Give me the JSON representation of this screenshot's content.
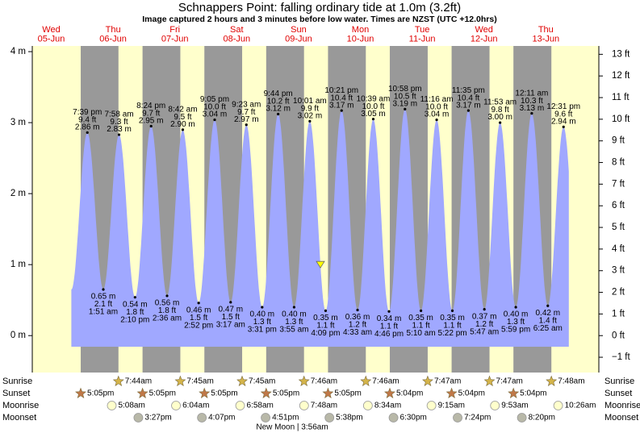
{
  "chart_data": {
    "type": "tide",
    "title": "Schnappers Point: falling  ordinary tide at 1.0m (3.2ft)",
    "subtitle": "Image captured 2 hours and 3 minutes before low water. Times are NZST (UTC +12.0hrs)",
    "current_height_m": 1.0,
    "ylim": [
      -0.52,
      4.08
    ],
    "yticks": [
      {
        "value": 0,
        "label": "0 m"
      },
      {
        "value": 1,
        "label": "1 m"
      },
      {
        "value": 2,
        "label": "2 m"
      },
      {
        "value": 3,
        "label": "3 m"
      },
      {
        "value": 4,
        "label": "4 m"
      }
    ],
    "y2lim": [
      -1.706,
      13.386
    ],
    "y2ticks": [
      {
        "value": -1,
        "label": "−1 ft"
      },
      {
        "value": 0,
        "label": "0 ft"
      },
      {
        "value": 1,
        "label": "1 ft"
      },
      {
        "value": 2,
        "label": "2 ft"
      },
      {
        "value": 3,
        "label": "3 ft"
      },
      {
        "value": 4,
        "label": "4 ft"
      },
      {
        "value": 5,
        "label": "5 ft"
      },
      {
        "value": 6,
        "label": "6 ft"
      },
      {
        "value": 7,
        "label": "7 ft"
      },
      {
        "value": 8,
        "label": "8 ft"
      },
      {
        "value": 9,
        "label": "9 ft"
      },
      {
        "value": 10,
        "label": "10 ft"
      },
      {
        "value": 11,
        "label": "11 ft"
      },
      {
        "value": 12,
        "label": "12 ft"
      },
      {
        "value": 13,
        "label": "13 ft"
      }
    ],
    "row_labels": {
      "sunrise": "Sunrise",
      "sunset": "Sunset",
      "moonrise": "Moonrise",
      "moonset": "Moonset"
    },
    "moon_phase": "New Moon | 3:56am",
    "days": [
      {
        "name": "Wed",
        "date": "05-Jun",
        "sunset": "5:05pm",
        "tides": [
          {
            "time": "7:39 pm",
            "m": 2.86,
            "m_label": "2.86 m",
            "ft": "9.4 ft"
          }
        ]
      },
      {
        "name": "Thu",
        "date": "06-Jun",
        "sunrise": "7:44am",
        "sunset": "5:05pm",
        "moonrise": "5:08am",
        "moonset": "3:27pm",
        "tides": [
          {
            "time": "1:51 am",
            "m": 0.65,
            "m_label": "0.65 m",
            "ft": "2.1 ft"
          },
          {
            "time": "7:58 am",
            "m": 2.83,
            "m_label": "2.83 m",
            "ft": "9.3 ft"
          },
          {
            "time": "2:10 pm",
            "m": 0.54,
            "m_label": "0.54 m",
            "ft": "1.8 ft"
          },
          {
            "time": "8:24 pm",
            "m": 2.95,
            "m_label": "2.95 m",
            "ft": "9.7 ft"
          }
        ]
      },
      {
        "name": "Fri",
        "date": "07-Jun",
        "sunrise": "7:45am",
        "sunset": "5:05pm",
        "moonrise": "6:04am",
        "moonset": "4:07pm",
        "tides": [
          {
            "time": "2:36 am",
            "m": 0.56,
            "m_label": "0.56 m",
            "ft": "1.8 ft"
          },
          {
            "time": "8:42 am",
            "m": 2.9,
            "m_label": "2.90 m",
            "ft": "9.5 ft"
          },
          {
            "time": "2:52 pm",
            "m": 0.46,
            "m_label": "0.46 m",
            "ft": "1.5 ft"
          },
          {
            "time": "9:05 pm",
            "m": 3.04,
            "m_label": "3.04 m",
            "ft": "10.0 ft"
          }
        ]
      },
      {
        "name": "Sat",
        "date": "08-Jun",
        "sunrise": "7:45am",
        "sunset": "5:05pm",
        "moonrise": "6:58am",
        "moonset": "4:51pm",
        "tides": [
          {
            "time": "3:17 am",
            "m": 0.47,
            "m_label": "0.47 m",
            "ft": "1.5 ft"
          },
          {
            "time": "9:23 am",
            "m": 2.97,
            "m_label": "2.97 m",
            "ft": "9.7 ft"
          },
          {
            "time": "3:31 pm",
            "m": 0.4,
            "m_label": "0.40 m",
            "ft": "1.3 ft"
          },
          {
            "time": "9:44 pm",
            "m": 3.12,
            "m_label": "3.12 m",
            "ft": "10.2 ft"
          }
        ]
      },
      {
        "name": "Sun",
        "date": "09-Jun",
        "sunrise": "7:46am",
        "sunset": "5:05pm",
        "moonrise": "7:48am",
        "moonset": "5:38pm",
        "tides": [
          {
            "time": "3:55 am",
            "m": 0.4,
            "m_label": "0.40 m",
            "ft": "1.3 ft"
          },
          {
            "time": "10:01 am",
            "m": 3.02,
            "m_label": "3.02 m",
            "ft": "9.9 ft"
          },
          {
            "time": "4:09 pm",
            "m": 0.35,
            "m_label": "0.35 m",
            "ft": "1.1 ft"
          },
          {
            "time": "10:21 pm",
            "m": 3.17,
            "m_label": "3.17 m",
            "ft": "10.4 ft"
          }
        ]
      },
      {
        "name": "Mon",
        "date": "10-Jun",
        "sunrise": "7:46am",
        "sunset": "5:04pm",
        "moonrise": "8:34am",
        "moonset": "6:30pm",
        "tides": [
          {
            "time": "4:33 am",
            "m": 0.36,
            "m_label": "0.36 m",
            "ft": "1.2 ft"
          },
          {
            "time": "10:39 am",
            "m": 3.05,
            "m_label": "3.05 m",
            "ft": "10.0 ft"
          },
          {
            "time": "4:46 pm",
            "m": 0.34,
            "m_label": "0.34 m",
            "ft": "1.1 ft"
          },
          {
            "time": "10:58 pm",
            "m": 3.19,
            "m_label": "3.19 m",
            "ft": "10.5 ft"
          }
        ]
      },
      {
        "name": "Tue",
        "date": "11-Jun",
        "sunrise": "7:47am",
        "sunset": "5:04pm",
        "moonrise": "9:15am",
        "moonset": "7:24pm",
        "tides": [
          {
            "time": "5:10 am",
            "m": 0.35,
            "m_label": "0.35 m",
            "ft": "1.1 ft"
          },
          {
            "time": "11:16 am",
            "m": 3.04,
            "m_label": "3.04 m",
            "ft": "10.0 ft"
          },
          {
            "time": "5:22 pm",
            "m": 0.35,
            "m_label": "0.35 m",
            "ft": "1.1 ft"
          },
          {
            "time": "11:35 pm",
            "m": 3.17,
            "m_label": "3.17 m",
            "ft": "10.4 ft"
          }
        ]
      },
      {
        "name": "Wed",
        "date": "12-Jun",
        "sunrise": "7:47am",
        "sunset": "5:04pm",
        "moonrise": "9:53am",
        "moonset": "8:20pm",
        "tides": [
          {
            "time": "5:47 am",
            "m": 0.37,
            "m_label": "0.37 m",
            "ft": "1.2 ft"
          },
          {
            "time": "11:53 am",
            "m": 3.0,
            "m_label": "3.00 m",
            "ft": "9.8 ft"
          },
          {
            "time": "5:59 pm",
            "m": 0.4,
            "m_label": "0.40 m",
            "ft": "1.3 ft"
          }
        ]
      },
      {
        "name": "Thu",
        "date": "13-Jun",
        "sunrise": "7:48am",
        "moonrise": "10:26am",
        "tides": [
          {
            "time": "12:11 am",
            "m": 3.13,
            "m_label": "3.13 m",
            "ft": "10.3 ft"
          },
          {
            "time": "6:25 am",
            "m": 0.42,
            "m_label": "0.42 m",
            "ft": "1.4 ft"
          },
          {
            "time": "12:31 pm",
            "m": 2.94,
            "m_label": "2.94 m",
            "ft": "9.6 ft"
          }
        ]
      }
    ]
  }
}
